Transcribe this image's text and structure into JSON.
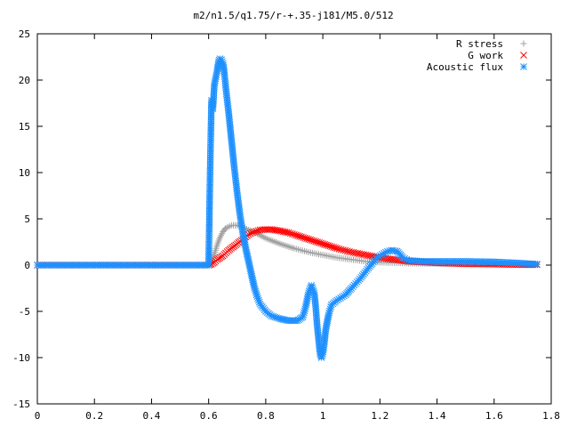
{
  "chart_data": {
    "type": "scatter",
    "title": "m2/n1.5/q1.75/r-+.35-j181/M5.0/512",
    "xlabel": "",
    "ylabel": "",
    "xlim": [
      0,
      1.8
    ],
    "ylim": [
      -15,
      25
    ],
    "x_ticks": [
      0,
      0.2,
      0.4,
      0.6,
      0.8,
      1,
      1.2,
      1.4,
      1.6,
      1.8
    ],
    "x_tick_labels": [
      "0",
      "0.2",
      "0.4",
      "0.6",
      "0.8",
      "1",
      "1.2",
      "1.4",
      "1.6",
      "1.8"
    ],
    "y_ticks": [
      -15,
      -10,
      -5,
      0,
      5,
      10,
      15,
      20,
      25
    ],
    "y_tick_labels": [
      "-15",
      "-10",
      "-5",
      "0",
      "5",
      "10",
      "15",
      "20",
      "25"
    ],
    "grid": false,
    "legend_position": "top-right",
    "series": [
      {
        "name": "R stress",
        "marker": "plus",
        "color": "#a0a0a0",
        "points": [
          [
            0.0,
            0
          ],
          [
            0.1,
            0
          ],
          [
            0.2,
            0
          ],
          [
            0.3,
            0
          ],
          [
            0.4,
            0
          ],
          [
            0.5,
            0
          ],
          [
            0.6,
            0
          ],
          [
            0.61,
            0.3
          ],
          [
            0.62,
            1.2
          ],
          [
            0.63,
            2.2
          ],
          [
            0.64,
            3.0
          ],
          [
            0.65,
            3.6
          ],
          [
            0.66,
            4.0
          ],
          [
            0.68,
            4.3
          ],
          [
            0.7,
            4.3
          ],
          [
            0.72,
            4.1
          ],
          [
            0.74,
            3.8
          ],
          [
            0.77,
            3.4
          ],
          [
            0.8,
            2.9
          ],
          [
            0.85,
            2.3
          ],
          [
            0.9,
            1.8
          ],
          [
            0.95,
            1.4
          ],
          [
            1.0,
            1.1
          ],
          [
            1.05,
            0.8
          ],
          [
            1.1,
            0.6
          ],
          [
            1.15,
            0.4
          ],
          [
            1.2,
            0.3
          ],
          [
            1.3,
            0.2
          ],
          [
            1.4,
            0.15
          ],
          [
            1.5,
            0.1
          ],
          [
            1.6,
            0.1
          ],
          [
            1.7,
            0.05
          ],
          [
            1.75,
            0.05
          ]
        ]
      },
      {
        "name": "G work",
        "marker": "cross",
        "color": "#ff0000",
        "points": [
          [
            0.0,
            0
          ],
          [
            0.1,
            0
          ],
          [
            0.2,
            0
          ],
          [
            0.3,
            0
          ],
          [
            0.4,
            0
          ],
          [
            0.5,
            0
          ],
          [
            0.6,
            0
          ],
          [
            0.61,
            0.1
          ],
          [
            0.62,
            0.3
          ],
          [
            0.63,
            0.6
          ],
          [
            0.65,
            1.0
          ],
          [
            0.67,
            1.6
          ],
          [
            0.7,
            2.3
          ],
          [
            0.72,
            2.8
          ],
          [
            0.74,
            3.3
          ],
          [
            0.76,
            3.6
          ],
          [
            0.78,
            3.8
          ],
          [
            0.8,
            3.85
          ],
          [
            0.82,
            3.85
          ],
          [
            0.85,
            3.7
          ],
          [
            0.88,
            3.5
          ],
          [
            0.9,
            3.3
          ],
          [
            0.95,
            2.8
          ],
          [
            1.0,
            2.3
          ],
          [
            1.05,
            1.8
          ],
          [
            1.1,
            1.4
          ],
          [
            1.15,
            1.1
          ],
          [
            1.2,
            0.8
          ],
          [
            1.25,
            0.6
          ],
          [
            1.3,
            0.4
          ],
          [
            1.4,
            0.25
          ],
          [
            1.5,
            0.15
          ],
          [
            1.6,
            0.1
          ],
          [
            1.7,
            0.05
          ],
          [
            1.75,
            0.05
          ]
        ]
      },
      {
        "name": "Acoustic flux",
        "marker": "star",
        "color": "#1e90ff",
        "points": [
          [
            0.0,
            0
          ],
          [
            0.1,
            0
          ],
          [
            0.2,
            0
          ],
          [
            0.3,
            0
          ],
          [
            0.4,
            0
          ],
          [
            0.5,
            0
          ],
          [
            0.6,
            0
          ],
          [
            0.605,
            9.8
          ],
          [
            0.61,
            17.8
          ],
          [
            0.615,
            16.9
          ],
          [
            0.62,
            19.5
          ],
          [
            0.63,
            21.0
          ],
          [
            0.635,
            22.0
          ],
          [
            0.64,
            22.3
          ],
          [
            0.645,
            22.2
          ],
          [
            0.65,
            21.8
          ],
          [
            0.655,
            20.8
          ],
          [
            0.66,
            19.2
          ],
          [
            0.67,
            16.5
          ],
          [
            0.68,
            13.5
          ],
          [
            0.69,
            10.5
          ],
          [
            0.7,
            7.8
          ],
          [
            0.71,
            5.4
          ],
          [
            0.72,
            3.4
          ],
          [
            0.73,
            1.8
          ],
          [
            0.74,
            0.4
          ],
          [
            0.75,
            -1.0
          ],
          [
            0.76,
            -2.4
          ],
          [
            0.77,
            -3.4
          ],
          [
            0.78,
            -4.2
          ],
          [
            0.8,
            -5.0
          ],
          [
            0.82,
            -5.5
          ],
          [
            0.85,
            -5.8
          ],
          [
            0.88,
            -6.0
          ],
          [
            0.91,
            -6.0
          ],
          [
            0.93,
            -5.6
          ],
          [
            0.94,
            -4.5
          ],
          [
            0.95,
            -3.0
          ],
          [
            0.96,
            -2.2
          ],
          [
            0.97,
            -3.0
          ],
          [
            0.975,
            -4.5
          ],
          [
            0.98,
            -6.5
          ],
          [
            0.985,
            -8.0
          ],
          [
            0.99,
            -9.5
          ],
          [
            0.995,
            -10.0
          ],
          [
            1.0,
            -9.6
          ],
          [
            1.005,
            -8.5
          ],
          [
            1.01,
            -7.0
          ],
          [
            1.02,
            -5.4
          ],
          [
            1.03,
            -4.3
          ],
          [
            1.05,
            -3.8
          ],
          [
            1.08,
            -3.2
          ],
          [
            1.1,
            -2.5
          ],
          [
            1.13,
            -1.5
          ],
          [
            1.16,
            -0.3
          ],
          [
            1.19,
            0.8
          ],
          [
            1.22,
            1.4
          ],
          [
            1.24,
            1.6
          ],
          [
            1.26,
            1.5
          ],
          [
            1.28,
            0.8
          ],
          [
            1.3,
            0.5
          ],
          [
            1.35,
            0.4
          ],
          [
            1.4,
            0.4
          ],
          [
            1.5,
            0.4
          ],
          [
            1.6,
            0.35
          ],
          [
            1.7,
            0.2
          ],
          [
            1.75,
            0.1
          ]
        ]
      }
    ]
  }
}
